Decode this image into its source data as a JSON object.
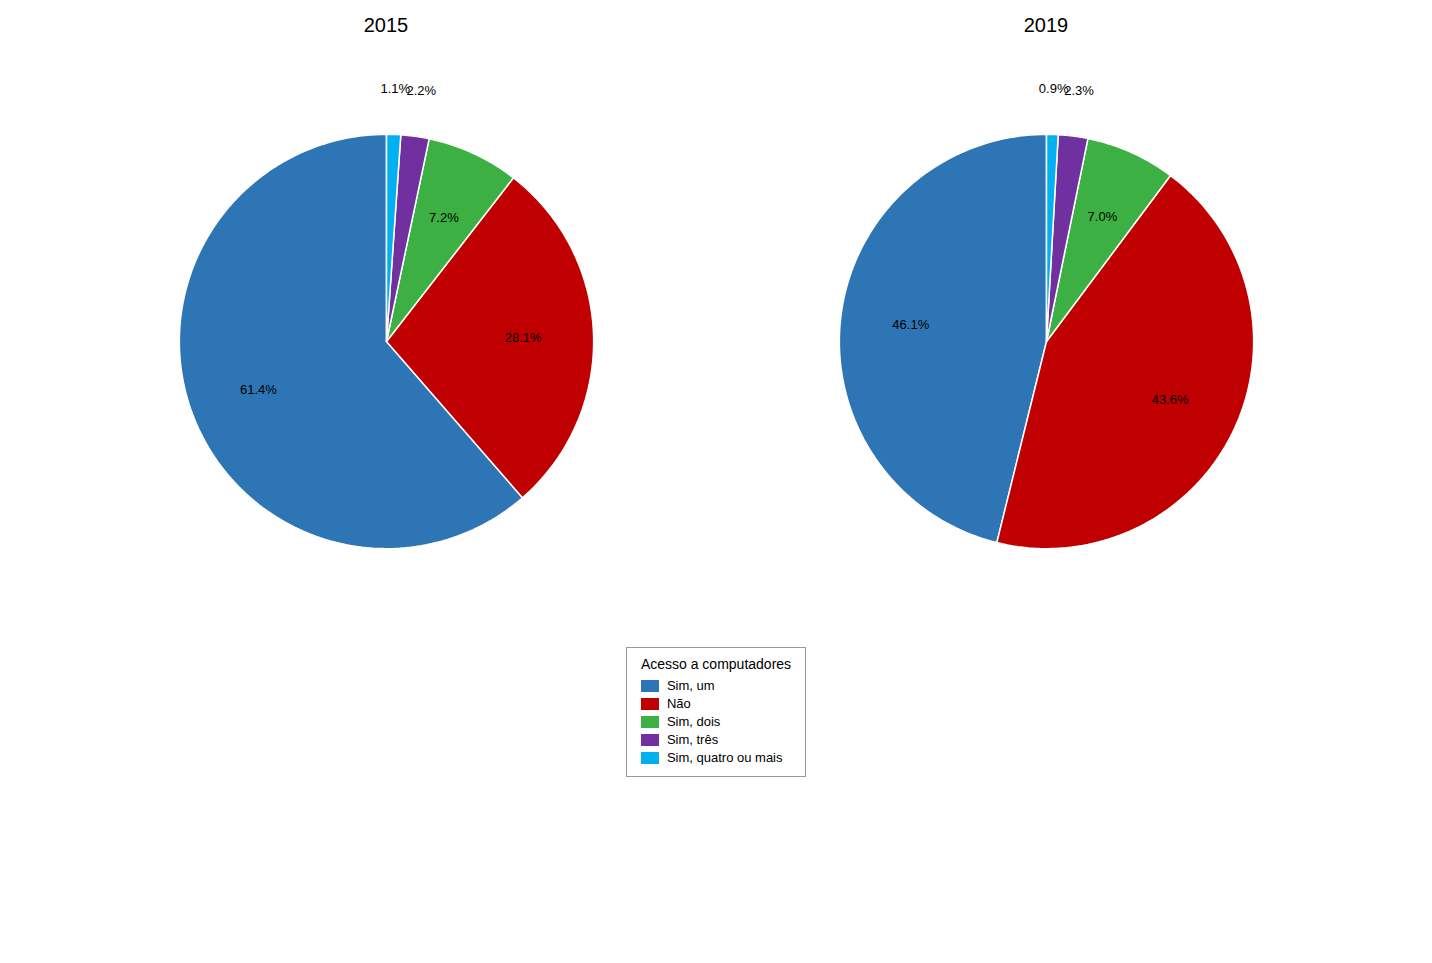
{
  "chart_data": [
    {
      "type": "pie",
      "title": "2015",
      "categories": [
        "Sim, um",
        "Não",
        "Sim, dois",
        "Sim, três",
        "Sim, quatro ou mais"
      ],
      "values": [
        61.4,
        28.1,
        7.2,
        2.2,
        1.1
      ],
      "value_labels": [
        "61.4%",
        "28.1%",
        "7.2%",
        "2.2%",
        "1.1%"
      ],
      "colors": [
        "#2E75B6",
        "#C00000",
        "#3CB043",
        "#7030A0",
        "#00B0F0"
      ],
      "data_labels": true,
      "legend": "bottom",
      "legend_title": "Acesso a computadores"
    },
    {
      "type": "pie",
      "title": "2019",
      "categories": [
        "Sim, um",
        "Não",
        "Sim, dois",
        "Sim, três",
        "Sim, quatro ou mais"
      ],
      "values": [
        46.1,
        43.6,
        7.0,
        2.3,
        0.9
      ],
      "value_labels": [
        "46.1%",
        "43.6%",
        "7.0%",
        "2.3%",
        "0.9%"
      ],
      "colors": [
        "#2E75B6",
        "#C00000",
        "#3CB043",
        "#7030A0",
        "#00B0F0"
      ],
      "data_labels": true,
      "legend": "bottom",
      "legend_title": "Acesso a computadores"
    }
  ]
}
